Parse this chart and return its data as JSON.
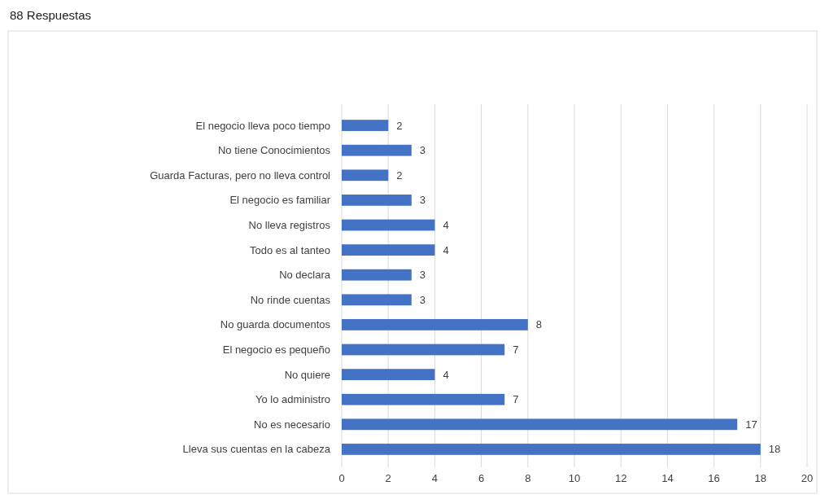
{
  "chart_data": {
    "type": "bar",
    "orientation": "horizontal",
    "title": "88 Respuestas",
    "categories": [
      "El negocio lleva poco tiempo",
      "No tiene Conocimientos",
      "Guarda Facturas, pero no lleva control",
      "El negocio es familiar",
      "No lleva registros",
      "Todo es al tanteo",
      "No declara",
      "No rinde cuentas",
      "No guarda documentos",
      "El negocio es pequeño",
      "No quiere",
      "Yo lo administro",
      "No es necesario",
      "Lleva sus cuentas en la cabeza"
    ],
    "values": [
      2,
      3,
      2,
      3,
      4,
      4,
      3,
      3,
      8,
      7,
      4,
      7,
      17,
      18
    ],
    "color": "#4472c4",
    "xlim": [
      0,
      20
    ],
    "xticks": [
      0,
      2,
      4,
      6,
      8,
      10,
      12,
      14,
      16,
      18,
      20
    ],
    "grid": "x",
    "data_labels": true
  }
}
